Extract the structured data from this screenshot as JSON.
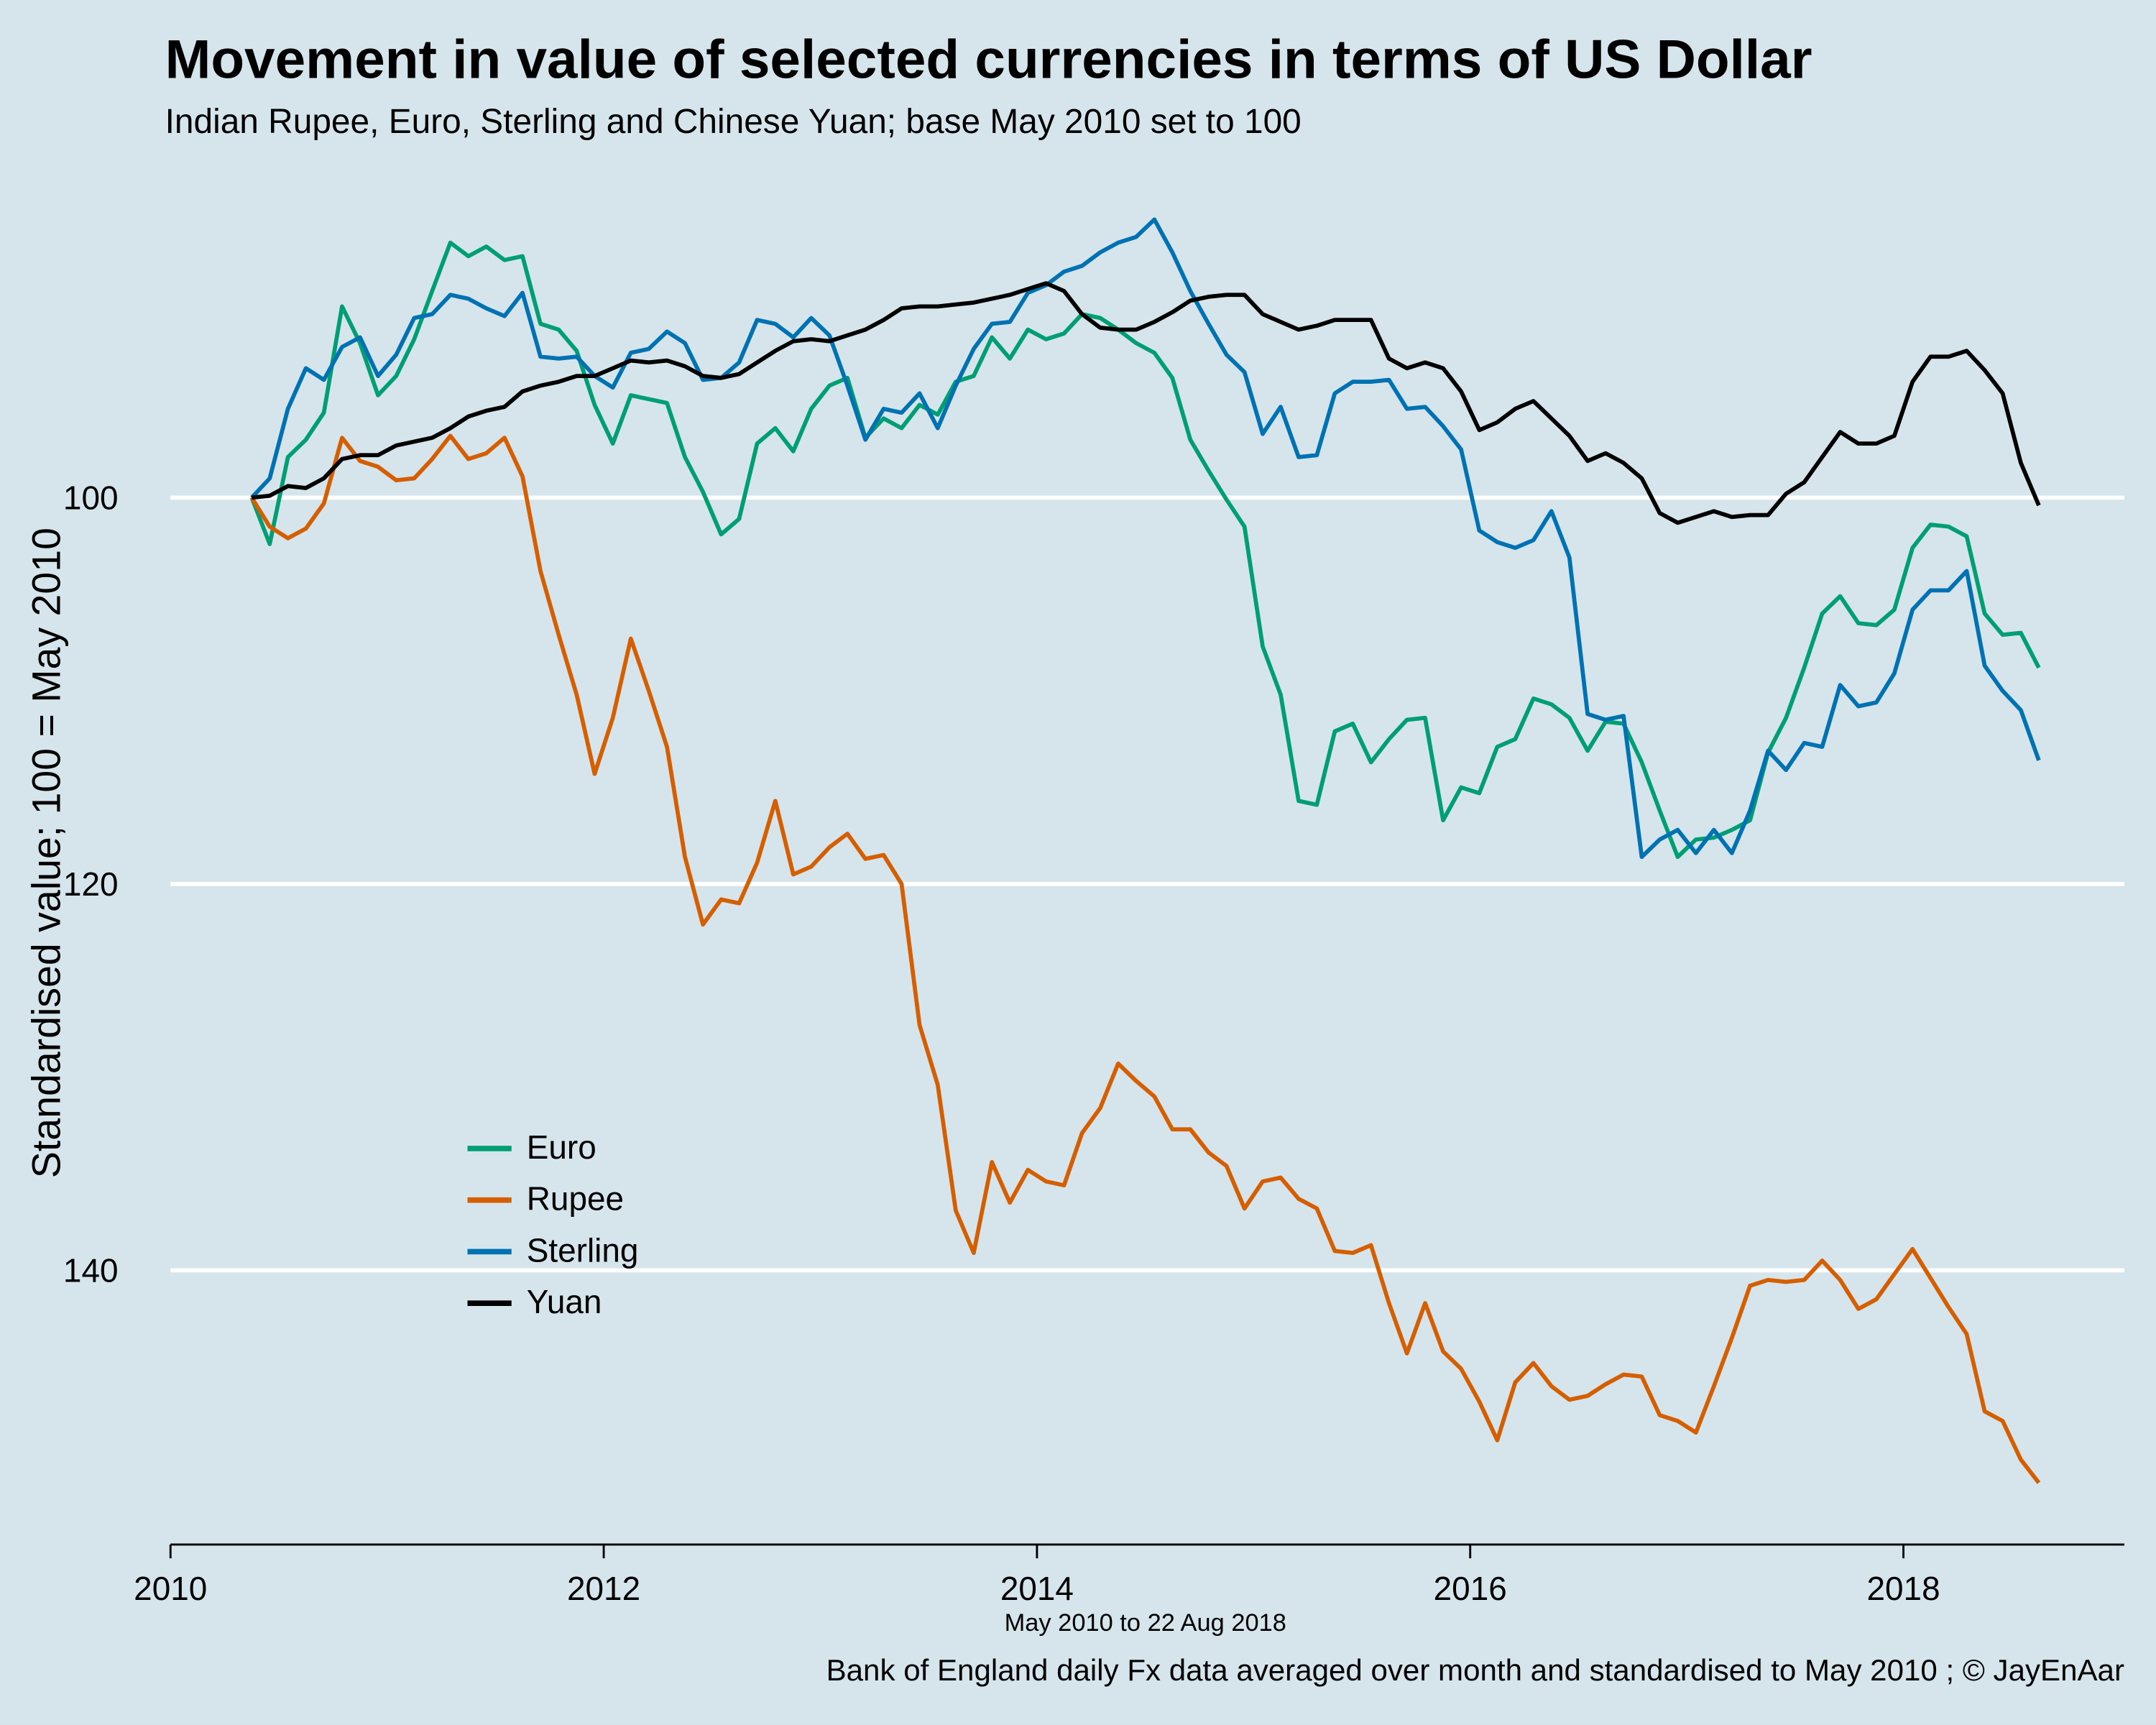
{
  "chart_data": {
    "type": "line",
    "title": "Movement in value of selected currencies in terms of US Dollar",
    "subtitle": "Indian Rupee, Euro, Sterling and Chinese Yuan; base May 2010 set to 100",
    "y_label": "Standardised value; 100 = May 2010",
    "x_label": "May 2010 to 22 Aug 2018",
    "source": "Bank of England daily Fx data averaged over month and standardised to May 2010 ;  © JayEnAar",
    "x": [
      2010.375,
      2010.458,
      2010.542,
      2010.625,
      2010.708,
      2010.792,
      2010.875,
      2010.958,
      2011.042,
      2011.125,
      2011.208,
      2011.292,
      2011.375,
      2011.458,
      2011.542,
      2011.625,
      2011.708,
      2011.792,
      2011.875,
      2011.958,
      2012.042,
      2012.125,
      2012.208,
      2012.292,
      2012.375,
      2012.458,
      2012.542,
      2012.625,
      2012.708,
      2012.792,
      2012.875,
      2012.958,
      2013.042,
      2013.125,
      2013.208,
      2013.292,
      2013.375,
      2013.458,
      2013.542,
      2013.625,
      2013.708,
      2013.792,
      2013.875,
      2013.958,
      2014.042,
      2014.125,
      2014.208,
      2014.292,
      2014.375,
      2014.458,
      2014.542,
      2014.625,
      2014.708,
      2014.792,
      2014.875,
      2014.958,
      2015.042,
      2015.125,
      2015.208,
      2015.292,
      2015.375,
      2015.458,
      2015.542,
      2015.625,
      2015.708,
      2015.792,
      2015.875,
      2015.958,
      2016.042,
      2016.125,
      2016.208,
      2016.292,
      2016.375,
      2016.458,
      2016.542,
      2016.625,
      2016.708,
      2016.792,
      2016.875,
      2016.958,
      2017.042,
      2017.125,
      2017.208,
      2017.292,
      2017.375,
      2017.458,
      2017.542,
      2017.625,
      2017.708,
      2017.792,
      2017.875,
      2017.958,
      2018.042,
      2018.125,
      2018.208,
      2018.292,
      2018.375,
      2018.458,
      2018.542,
      2018.625
    ],
    "series": [
      {
        "name": "Euro",
        "color": "#009E73",
        "values": [
          100,
          102.4,
          97.9,
          97.0,
          95.6,
          90.1,
          92.0,
          94.7,
          93.7,
          91.8,
          89.3,
          86.8,
          87.5,
          87.0,
          87.7,
          87.5,
          91.0,
          91.3,
          92.4,
          95.2,
          97.2,
          94.7,
          94.9,
          95.1,
          97.9,
          99.7,
          101.9,
          101.1,
          97.2,
          96.4,
          97.6,
          95.4,
          94.2,
          93.8,
          96.9,
          95.9,
          96.4,
          95.2,
          95.7,
          94.0,
          93.7,
          91.7,
          92.8,
          91.3,
          91.8,
          91.5,
          90.5,
          90.7,
          91.3,
          92.0,
          92.5,
          93.8,
          97.0,
          98.6,
          100.1,
          101.5,
          107.7,
          110.2,
          115.7,
          115.9,
          112.1,
          111.7,
          113.7,
          112.5,
          111.5,
          111.4,
          116.7,
          115.0,
          115.3,
          112.9,
          112.5,
          110.4,
          110.7,
          111.4,
          113.1,
          111.6,
          111.7,
          113.7,
          116.2,
          118.6,
          117.7,
          117.6,
          117.2,
          116.7,
          113.2,
          111.4,
          108.8,
          106.0,
          105.1,
          106.5,
          106.6,
          105.8,
          102.6,
          101.4,
          101.5,
          102.0,
          106.0,
          107.1,
          107.0,
          108.8
        ]
      },
      {
        "name": "Rupee",
        "color": "#D55E00",
        "values": [
          100,
          101.5,
          102.1,
          101.6,
          100.3,
          96.9,
          98.1,
          98.4,
          99.1,
          99.0,
          98.0,
          96.8,
          98.0,
          97.7,
          96.9,
          98.9,
          103.8,
          107.1,
          110.2,
          114.3,
          111.4,
          107.3,
          110.0,
          112.9,
          118.6,
          122.1,
          120.8,
          121.0,
          118.9,
          115.7,
          119.5,
          119.1,
          118.1,
          117.4,
          118.7,
          118.5,
          120.0,
          127.3,
          130.4,
          136.9,
          139.1,
          134.4,
          136.5,
          134.8,
          135.4,
          135.6,
          132.9,
          131.6,
          129.3,
          130.2,
          131.0,
          132.7,
          132.7,
          133.9,
          134.6,
          136.8,
          135.4,
          135.2,
          136.3,
          136.8,
          139.0,
          139.1,
          138.7,
          141.7,
          144.3,
          141.7,
          144.2,
          145.1,
          146.8,
          148.8,
          145.8,
          144.8,
          146.0,
          146.7,
          146.5,
          145.9,
          145.4,
          145.5,
          147.5,
          147.8,
          148.4,
          146.0,
          143.5,
          140.8,
          140.5,
          140.6,
          140.5,
          139.5,
          140.5,
          142.0,
          141.5,
          140.2,
          138.9,
          140.4,
          141.9,
          143.3,
          147.3,
          147.8,
          149.8,
          151.0
        ]
      },
      {
        "name": "Sterling",
        "color": "#0072B2",
        "values": [
          100,
          99.0,
          95.4,
          93.3,
          93.9,
          92.2,
          91.7,
          93.7,
          92.6,
          90.7,
          90.5,
          89.5,
          89.7,
          90.2,
          90.6,
          89.4,
          92.7,
          92.8,
          92.7,
          93.7,
          94.3,
          92.5,
          92.3,
          91.4,
          92.0,
          93.9,
          93.8,
          93.0,
          90.8,
          91.0,
          91.7,
          90.7,
          91.6,
          94.2,
          97.0,
          95.4,
          95.6,
          94.6,
          96.4,
          94.2,
          92.3,
          91.0,
          90.9,
          89.4,
          89.0,
          88.3,
          88.0,
          87.3,
          86.8,
          86.5,
          85.6,
          87.3,
          89.3,
          91.0,
          92.6,
          93.5,
          96.7,
          95.3,
          97.9,
          97.8,
          94.6,
          94.0,
          94.0,
          93.9,
          95.4,
          95.3,
          96.3,
          97.5,
          101.7,
          102.3,
          102.6,
          102.2,
          100.7,
          103.1,
          111.2,
          111.5,
          111.3,
          118.6,
          117.7,
          117.2,
          118.4,
          117.2,
          118.4,
          116.2,
          113.1,
          114.1,
          112.7,
          112.9,
          109.7,
          110.8,
          110.6,
          109.1,
          105.8,
          104.8,
          104.8,
          103.8,
          108.7,
          110.0,
          111.0,
          113.6
        ]
      },
      {
        "name": "Yuan",
        "color": "#000000",
        "values": [
          100,
          99.9,
          99.4,
          99.5,
          99.0,
          98.0,
          97.8,
          97.8,
          97.3,
          97.1,
          96.9,
          96.4,
          95.8,
          95.5,
          95.3,
          94.5,
          94.2,
          94.0,
          93.7,
          93.7,
          93.3,
          92.9,
          93.0,
          92.9,
          93.2,
          93.7,
          93.8,
          93.6,
          93.0,
          92.4,
          91.9,
          91.8,
          91.9,
          91.6,
          91.3,
          90.8,
          90.2,
          90.1,
          90.1,
          90.0,
          89.9,
          89.7,
          89.5,
          89.2,
          88.9,
          89.3,
          90.5,
          91.2,
          91.3,
          91.3,
          90.9,
          90.4,
          89.8,
          89.6,
          89.5,
          89.5,
          90.5,
          90.9,
          91.3,
          91.1,
          90.8,
          90.8,
          90.8,
          92.8,
          93.3,
          93.0,
          93.3,
          94.5,
          96.5,
          96.1,
          95.4,
          95.0,
          95.9,
          96.8,
          98.1,
          97.7,
          98.2,
          99.0,
          100.8,
          101.3,
          101.0,
          100.7,
          101.0,
          100.9,
          100.9,
          99.8,
          99.2,
          97.9,
          96.6,
          97.2,
          97.2,
          96.8,
          94.0,
          92.7,
          92.7,
          92.4,
          93.4,
          94.6,
          98.2,
          100.4
        ]
      }
    ],
    "xlim": [
      2010,
      2019.02
    ],
    "xticks": [
      2010,
      2012,
      2014,
      2016,
      2018
    ],
    "ylim": [
      85,
      154.2
    ],
    "yticks": [
      100,
      120,
      140
    ],
    "y_inverted": true,
    "grid": true,
    "legend_position": "bottom-left"
  }
}
